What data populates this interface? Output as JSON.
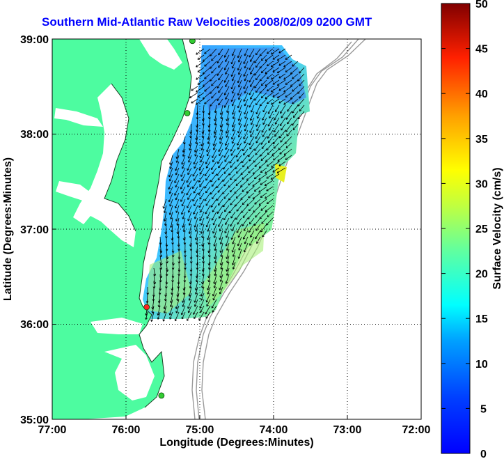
{
  "title": "Southern Mid-Atlantic Raw Velocities 2008/02/09 0200 GMT",
  "xaxis": {
    "label": "Longitude (Degrees:Minutes)",
    "ticks": [
      "77:00",
      "76:00",
      "75:00",
      "74:00",
      "73:00",
      "72:00"
    ]
  },
  "yaxis": {
    "label": "Latitude (Degrees:Minutes)",
    "ticks": [
      "39:00",
      "38:00",
      "37:00",
      "36:00",
      "35:00"
    ]
  },
  "colorbar": {
    "label": "Surface Velocity (cm/s)",
    "ticks": [
      "50",
      "45",
      "40",
      "35",
      "30",
      "25",
      "20",
      "15",
      "10",
      "5",
      "0"
    ],
    "min": 0,
    "max": 50,
    "colormap": "jet"
  },
  "colors": {
    "land": "#4dfca0",
    "title": "#0000ff",
    "bathymetry": "#999999",
    "station_active": "#33cc33",
    "station_alert": "#ff2020"
  },
  "chart_data": {
    "type": "heatmap",
    "subtype": "vector field over speed map",
    "title": "Southern Mid-Atlantic Raw Velocities 2008/02/09 0200 GMT",
    "xlabel": "Longitude (Degrees:Minutes)",
    "ylabel": "Latitude (Degrees:Minutes)",
    "xlim": [
      -77,
      -72
    ],
    "ylim": [
      35,
      39
    ],
    "color_range": [
      0,
      50
    ],
    "color_units": "cm/s",
    "grid": true,
    "stations": [
      {
        "lon": -75.1,
        "lat": 38.98,
        "status": "active"
      },
      {
        "lon": -75.17,
        "lat": 38.22,
        "status": "active"
      },
      {
        "lon": -75.72,
        "lat": 36.18,
        "status": "alert"
      },
      {
        "lon": -75.52,
        "lat": 35.25,
        "status": "active"
      }
    ]
  }
}
